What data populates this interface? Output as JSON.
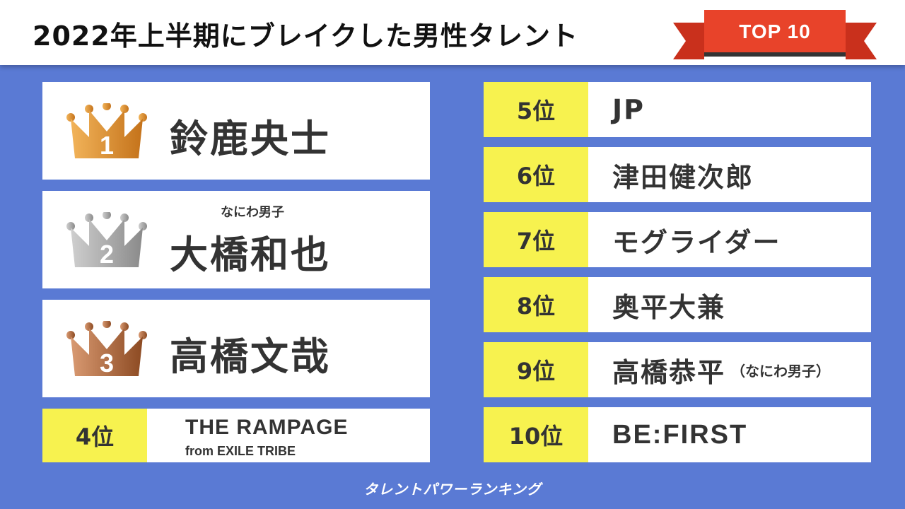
{
  "header": {
    "title": "2022年上半期にブレイクした男性タレント",
    "badge": "TOP 10"
  },
  "colors": {
    "background": "#5a7ad4",
    "ribbon": "#e8432a",
    "rank_highlight": "#f7f24f",
    "gold": "#d48a2a",
    "silver": "#9a9a9a",
    "bronze": "#a4603a"
  },
  "top3": [
    {
      "rank": "1",
      "name": "鈴鹿央士",
      "sub": "",
      "crown_icon": "gold-crown-icon"
    },
    {
      "rank": "2",
      "name": "大橋和也",
      "sub": "なにわ男子",
      "crown_icon": "silver-crown-icon"
    },
    {
      "rank": "3",
      "name": "高橋文哉",
      "sub": "",
      "crown_icon": "bronze-crown-icon"
    }
  ],
  "rank4": {
    "rank": "4位",
    "name_line1": "THE RAMPAGE",
    "name_line2": "from EXILE TRIBE"
  },
  "ranks": [
    {
      "rank": "5位",
      "name": "JP",
      "note": ""
    },
    {
      "rank": "6位",
      "name": "津田健次郎",
      "note": ""
    },
    {
      "rank": "7位",
      "name": "モグライダー",
      "note": ""
    },
    {
      "rank": "8位",
      "name": "奥平大兼",
      "note": ""
    },
    {
      "rank": "9位",
      "name": "高橋恭平",
      "note": "（なにわ男子）"
    },
    {
      "rank": "10位",
      "name": "BE:FIRST",
      "note": ""
    }
  ],
  "footer": {
    "logo": "タレントパワーランキング"
  }
}
